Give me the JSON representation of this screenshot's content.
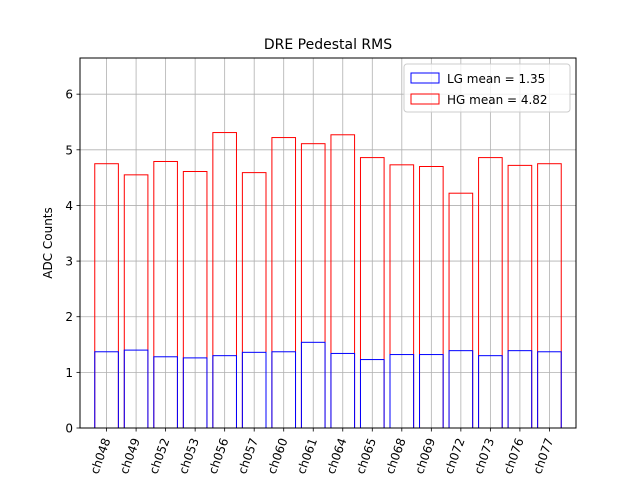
{
  "chart_data": {
    "type": "bar",
    "title": "DRE Pedestal RMS",
    "xlabel": "",
    "ylabel": "ADC Counts",
    "ylim": [
      0,
      6.65
    ],
    "yticks": [
      0,
      1,
      2,
      3,
      4,
      5,
      6
    ],
    "grid": true,
    "legend_position": "top-right",
    "categories": [
      "ch048",
      "ch049",
      "ch052",
      "ch053",
      "ch056",
      "ch057",
      "ch060",
      "ch061",
      "ch064",
      "ch065",
      "ch068",
      "ch069",
      "ch072",
      "ch073",
      "ch076",
      "ch077"
    ],
    "series": [
      {
        "name": "HG mean = 4.82",
        "color": "#ff0000",
        "values": [
          4.75,
          4.55,
          4.79,
          4.61,
          5.31,
          4.59,
          5.22,
          5.11,
          5.27,
          4.86,
          4.73,
          4.7,
          4.22,
          4.86,
          4.72,
          4.75
        ]
      },
      {
        "name": "LG mean = 1.35",
        "color": "#0000ff",
        "values": [
          1.37,
          1.4,
          1.28,
          1.26,
          1.3,
          1.36,
          1.37,
          1.54,
          1.34,
          1.23,
          1.32,
          1.32,
          1.39,
          1.3,
          1.39,
          1.37
        ]
      }
    ],
    "legend_order": [
      1,
      0
    ]
  }
}
